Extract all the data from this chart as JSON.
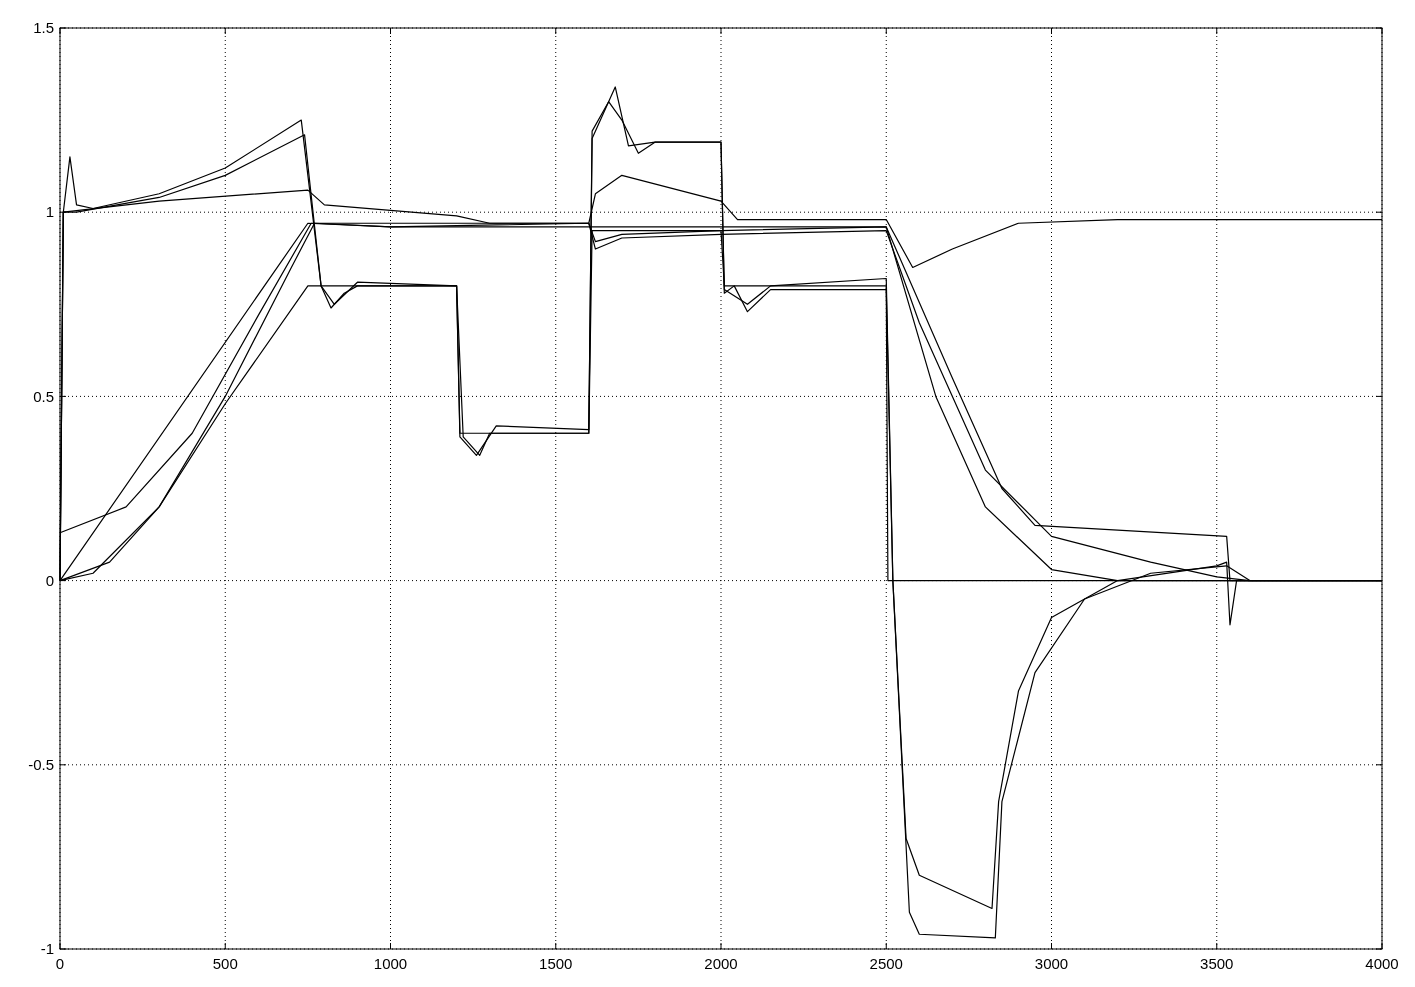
{
  "chart_data": {
    "type": "line",
    "xlim": [
      0,
      4000
    ],
    "ylim": [
      -1,
      1.5
    ],
    "xticks": [
      0,
      500,
      1000,
      1500,
      2000,
      2500,
      3000,
      3500,
      4000
    ],
    "yticks": [
      -1,
      -0.5,
      0,
      0.5,
      1,
      1.5
    ],
    "grid": true,
    "line_style": "solid",
    "marker": "none",
    "series": [
      {
        "color": "#000000",
        "x": [
          0,
          10,
          30,
          50,
          100,
          300,
          500,
          730,
          790,
          820,
          860,
          900,
          1200,
          1220,
          1270,
          1300,
          1600,
          1610,
          1660,
          1700,
          1750,
          1800,
          2000,
          2010,
          2040,
          2080,
          2150,
          2500,
          2520,
          2560,
          2600,
          2820,
          2840,
          2900,
          3000,
          3200,
          3500,
          3530,
          3540,
          3560,
          4000
        ],
        "values": [
          0,
          1.0,
          1.15,
          1.02,
          1.01,
          1.05,
          1.12,
          1.25,
          0.8,
          0.74,
          0.78,
          0.8,
          0.8,
          0.39,
          0.34,
          0.4,
          0.4,
          1.22,
          1.3,
          1.25,
          1.16,
          1.19,
          1.19,
          0.78,
          0.8,
          0.73,
          0.79,
          0.79,
          0.0,
          -0.7,
          -0.8,
          -0.89,
          -0.6,
          -0.3,
          -0.1,
          0,
          0.04,
          0.05,
          -0.12,
          0,
          0
        ]
      },
      {
        "color": "#000000",
        "x": [
          0,
          10,
          50,
          300,
          500,
          740,
          790,
          830,
          900,
          1200,
          1210,
          1260,
          1320,
          1600,
          1610,
          1680,
          1720,
          1800,
          2000,
          2010,
          2080,
          2150,
          2500,
          2520,
          2570,
          2600,
          2830,
          2850,
          2950,
          3100,
          3300,
          3530,
          3600
        ],
        "values": [
          0,
          1.0,
          1.0,
          1.04,
          1.1,
          1.21,
          0.8,
          0.75,
          0.81,
          0.8,
          0.39,
          0.34,
          0.42,
          0.41,
          1.2,
          1.34,
          1.18,
          1.19,
          1.19,
          0.79,
          0.75,
          0.8,
          0.82,
          0,
          -0.9,
          -0.96,
          -0.97,
          -0.6,
          -0.25,
          -0.05,
          0.02,
          0.04,
          0
        ]
      },
      {
        "color": "#000000",
        "x": [
          0,
          10,
          300,
          750,
          800,
          1200,
          1300,
          1600,
          1620,
          1700,
          2000,
          2050,
          2500,
          2580,
          2700,
          2900,
          3200,
          4000
        ],
        "values": [
          0,
          1.0,
          1.03,
          1.06,
          1.02,
          0.99,
          0.97,
          0.97,
          1.05,
          1.1,
          1.03,
          0.98,
          0.98,
          0.85,
          0.9,
          0.97,
          0.98,
          0.98
        ]
      },
      {
        "color": "#000000",
        "x": [
          0,
          750,
          1000,
          1600,
          1620,
          1700,
          2000,
          2500,
          2700,
          2850,
          2950,
          3530,
          3540,
          4000
        ],
        "values": [
          0,
          0.97,
          0.96,
          0.97,
          0.92,
          0.94,
          0.95,
          0.96,
          0.55,
          0.25,
          0.15,
          0.12,
          0,
          0
        ]
      },
      {
        "color": "#000000",
        "x": [
          0,
          200,
          400,
          600,
          760,
          1000,
          1600,
          1620,
          1700,
          2000,
          2500,
          2600,
          2800,
          3000,
          3300,
          3500,
          3600,
          4000
        ],
        "values": [
          0.13,
          0.2,
          0.4,
          0.72,
          0.97,
          0.97,
          0.97,
          0.9,
          0.93,
          0.94,
          0.95,
          0.7,
          0.3,
          0.12,
          0.05,
          0.01,
          0,
          0
        ]
      },
      {
        "color": "#000000",
        "x": [
          0,
          150,
          300,
          500,
          750,
          1200,
          1210,
          1600,
          1610,
          2000,
          2010,
          2500,
          2505,
          3600,
          4000
        ],
        "values": [
          0,
          0.05,
          0.2,
          0.48,
          0.8,
          0.8,
          0.4,
          0.4,
          0.95,
          0.95,
          0.8,
          0.8,
          0,
          0,
          0
        ]
      },
      {
        "color": "#000000",
        "x": [
          0,
          100,
          300,
          500,
          700,
          770,
          1000,
          1600,
          2000,
          2500,
          2650,
          2800,
          3000,
          3200,
          4000
        ],
        "values": [
          0,
          0.02,
          0.2,
          0.5,
          0.85,
          0.97,
          0.96,
          0.96,
          0.96,
          0.96,
          0.5,
          0.2,
          0.03,
          0,
          0
        ]
      }
    ]
  }
}
